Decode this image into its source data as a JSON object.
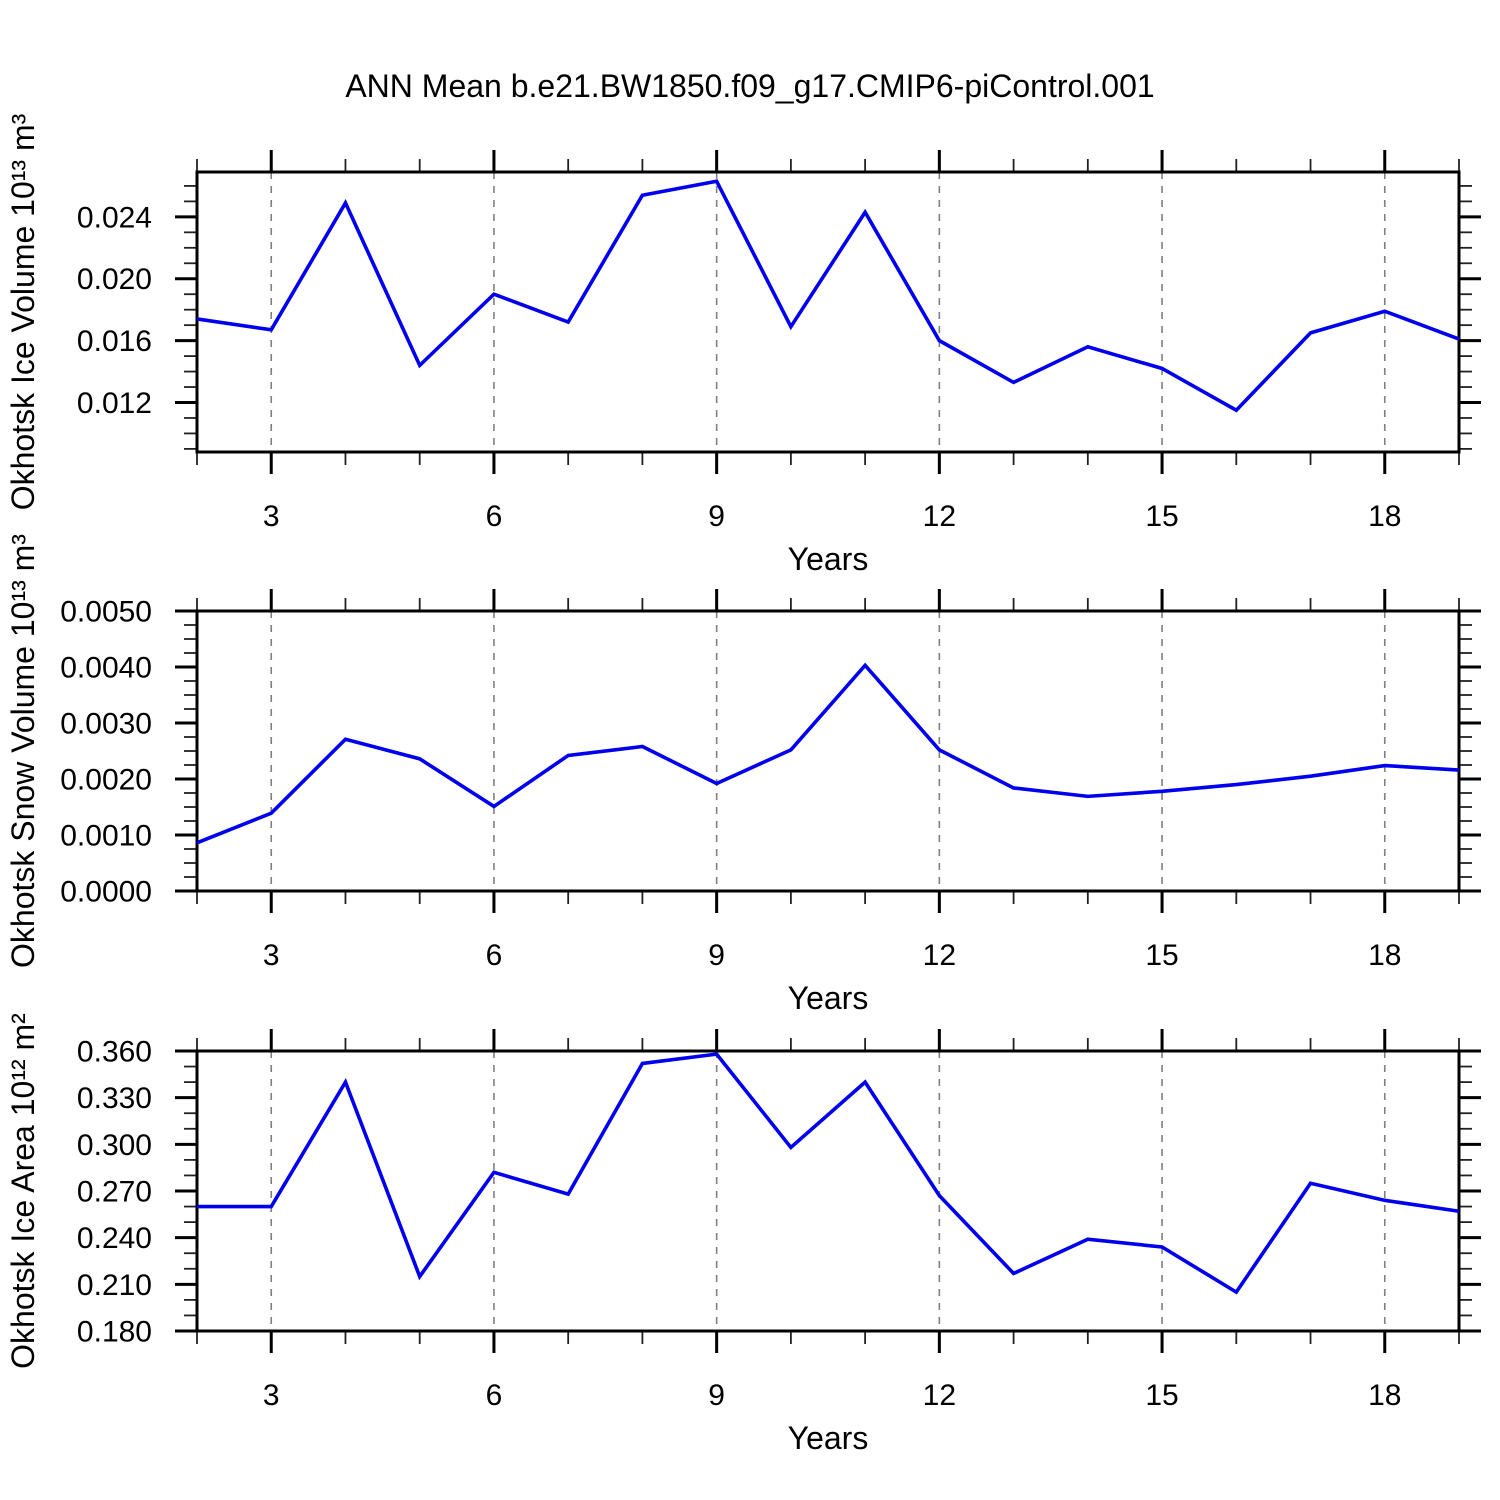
{
  "title": "ANN Mean b.e21.BW1850.f09_g17.CMIP6-piControl.001",
  "style": {
    "background": "#ffffff",
    "line_color": "#0000EE",
    "axis_color": "#000000",
    "grid_color": "#808080",
    "text_color": "#000000"
  },
  "chart_data": [
    {
      "type": "line",
      "name": "okhotsk-ice-volume",
      "ylabel": "Okhotsk Ice Volume 10¹³ m³",
      "xlabel": "Years",
      "x": [
        2,
        3,
        4,
        5,
        6,
        7,
        8,
        9,
        10,
        11,
        12,
        13,
        14,
        15,
        16,
        17,
        18,
        19
      ],
      "values": [
        0.0174,
        0.0167,
        0.0249,
        0.0144,
        0.019,
        0.0172,
        0.0254,
        0.0263,
        0.0169,
        0.0243,
        0.016,
        0.0133,
        0.0156,
        0.0142,
        0.0115,
        0.0165,
        0.0179,
        0.0161
      ],
      "xlim": [
        2,
        19
      ],
      "ylim": [
        0.0088,
        0.0269
      ],
      "xticks": [
        3,
        6,
        9,
        12,
        15,
        18
      ],
      "xtick_labels": [
        "3",
        "6",
        "9",
        "12",
        "15",
        "18"
      ],
      "xminor_step": 1,
      "yticks": [
        0.012,
        0.016,
        0.02,
        0.024
      ],
      "ytick_labels": [
        "0.012",
        "0.016",
        "0.020",
        "0.024"
      ],
      "yminor_step": 0.001,
      "grid": "vertical-dashed-at-major-x",
      "legend": "none"
    },
    {
      "type": "line",
      "name": "okhotsk-snow-volume",
      "ylabel": "Okhotsk Snow Volume 10¹³ m³",
      "xlabel": "Years",
      "x": [
        2,
        3,
        4,
        5,
        6,
        7,
        8,
        9,
        10,
        11,
        12,
        13,
        14,
        15,
        16,
        17,
        18,
        19
      ],
      "values": [
        0.00086,
        0.00139,
        0.00271,
        0.00236,
        0.00151,
        0.00242,
        0.00258,
        0.00192,
        0.00252,
        0.00403,
        0.00252,
        0.00184,
        0.00169,
        0.00178,
        0.0019,
        0.00205,
        0.00224,
        0.00216
      ],
      "xlim": [
        2,
        19
      ],
      "ylim": [
        0.0,
        0.005
      ],
      "xticks": [
        3,
        6,
        9,
        12,
        15,
        18
      ],
      "xtick_labels": [
        "3",
        "6",
        "9",
        "12",
        "15",
        "18"
      ],
      "xminor_step": 1,
      "yticks": [
        0.0,
        0.001,
        0.002,
        0.003,
        0.004,
        0.005
      ],
      "ytick_labels": [
        "0.0000",
        "0.0010",
        "0.0020",
        "0.0030",
        "0.0040",
        "0.0050"
      ],
      "yminor_step": 0.00025,
      "grid": "vertical-dashed-at-major-x",
      "legend": "none"
    },
    {
      "type": "line",
      "name": "okhotsk-ice-area",
      "ylabel": "Okhotsk Ice Area 10¹² m²",
      "xlabel": "Years",
      "x": [
        2,
        3,
        4,
        5,
        6,
        7,
        8,
        9,
        10,
        11,
        12,
        13,
        14,
        15,
        16,
        17,
        18,
        19
      ],
      "values": [
        0.26,
        0.26,
        0.34,
        0.215,
        0.282,
        0.268,
        0.352,
        0.358,
        0.298,
        0.34,
        0.267,
        0.217,
        0.239,
        0.234,
        0.205,
        0.275,
        0.264,
        0.257
      ],
      "xlim": [
        2,
        19
      ],
      "ylim": [
        0.18,
        0.36
      ],
      "xticks": [
        3,
        6,
        9,
        12,
        15,
        18
      ],
      "xtick_labels": [
        "3",
        "6",
        "9",
        "12",
        "15",
        "18"
      ],
      "xminor_step": 1,
      "yticks": [
        0.18,
        0.21,
        0.24,
        0.27,
        0.3,
        0.33,
        0.36
      ],
      "ytick_labels": [
        "0.180",
        "0.210",
        "0.240",
        "0.270",
        "0.300",
        "0.330",
        "0.360"
      ],
      "yminor_step": 0.01,
      "grid": "vertical-dashed-at-major-x",
      "legend": "none"
    }
  ]
}
